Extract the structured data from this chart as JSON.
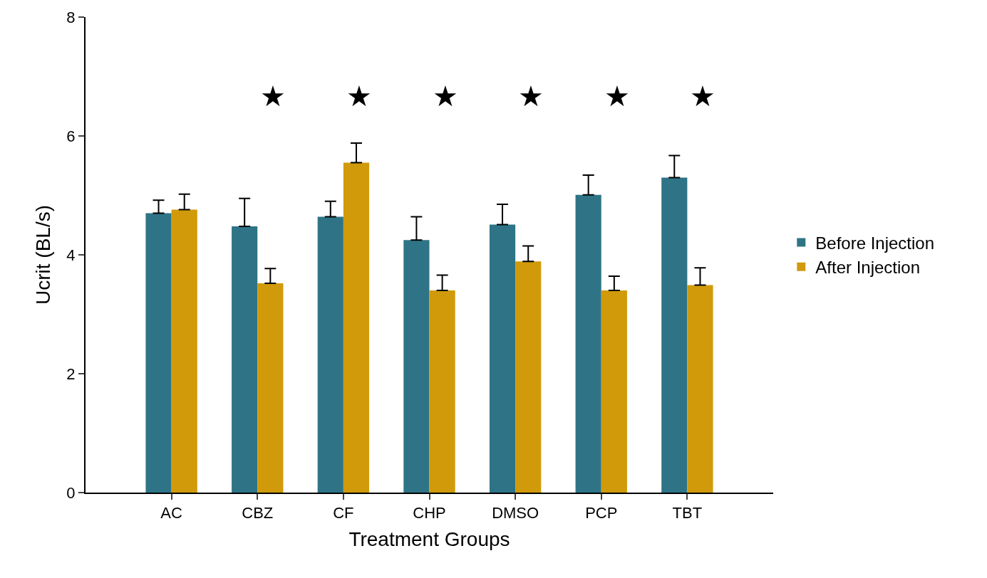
{
  "chart_data": {
    "type": "bar",
    "xlabel": "Treatment Groups",
    "ylabel": "Ucrit (BL/s)",
    "categories": [
      "AC",
      "CBZ",
      "CF",
      "CHP",
      "DMSO",
      "PCP",
      "TBT"
    ],
    "series": [
      {
        "name": "Before Injection",
        "color": "#2e7486",
        "values": [
          4.7,
          4.48,
          4.64,
          4.25,
          4.51,
          5.01,
          5.3
        ],
        "errors": [
          [
            4.7,
            4.92
          ],
          [
            4.48,
            4.95
          ],
          [
            4.64,
            4.9
          ],
          [
            4.25,
            4.64
          ],
          [
            4.51,
            4.85
          ],
          [
            5.01,
            5.34
          ],
          [
            5.3,
            5.67
          ]
        ]
      },
      {
        "name": "After Injection",
        "color": "#d09a0a",
        "values": [
          4.76,
          3.52,
          5.55,
          3.4,
          3.89,
          3.4,
          3.49
        ],
        "errors": [
          [
            4.76,
            5.02
          ],
          [
            3.52,
            3.77
          ],
          [
            5.55,
            5.88
          ],
          [
            3.4,
            3.66
          ],
          [
            3.89,
            4.15
          ],
          [
            3.4,
            3.64
          ],
          [
            3.49,
            3.78
          ]
        ]
      }
    ],
    "ylim": [
      0,
      8
    ],
    "yticks": [
      0,
      2,
      4,
      6,
      8
    ],
    "legend": "right",
    "annotations": [
      "★",
      "★",
      "★",
      "★",
      "★",
      "★"
    ]
  }
}
